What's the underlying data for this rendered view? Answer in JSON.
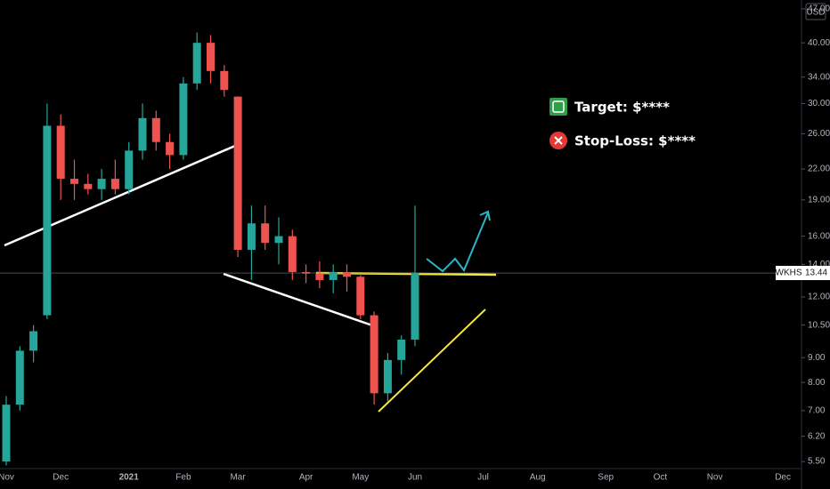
{
  "chart_data": {
    "type": "candlestick",
    "symbol": "WKHS",
    "currency": "USD",
    "last_price": 13.44,
    "log_scale": true,
    "up_color": "#26a69a",
    "down_color": "#ef5350",
    "annotations": {
      "target": "Target: $****",
      "stop_loss": "Stop-Loss: $****"
    },
    "categories": [
      "Nov",
      null,
      null,
      null,
      "Dec",
      null,
      null,
      null,
      null,
      "2021",
      null,
      null,
      null,
      "Feb",
      null,
      null,
      null,
      "Mar",
      null,
      null,
      null,
      null,
      "Apr",
      null,
      null,
      null,
      "May",
      null,
      null,
      null,
      "Jun",
      null,
      null,
      null,
      null,
      "Jul",
      null,
      null,
      null,
      "Aug",
      null,
      null,
      null,
      null,
      "Sep",
      null,
      null,
      null,
      "Oct",
      null,
      null,
      null,
      "Nov",
      null,
      null,
      null,
      null,
      "Dec"
    ],
    "open": [
      5.5,
      7.2,
      9.3,
      11,
      27,
      21,
      20.5,
      20,
      21,
      20,
      24,
      28,
      25,
      23.5,
      33,
      40,
      35,
      31,
      15,
      17,
      15.5,
      16,
      13.5,
      13.4,
      13,
      13.5,
      13.2,
      11,
      7.6,
      8.9,
      9.8,
      null,
      null,
      null,
      null,
      null,
      null,
      null,
      null,
      null,
      null,
      null,
      null,
      null,
      null,
      null,
      null,
      null,
      null,
      null,
      null,
      null,
      null,
      null,
      null,
      null,
      null,
      null
    ],
    "high": [
      7.5,
      9.5,
      10.5,
      30,
      28.5,
      23,
      21.5,
      22,
      23,
      25,
      30,
      29,
      26,
      34,
      42,
      41.5,
      36,
      31,
      18.5,
      18.5,
      17.5,
      16.5,
      14,
      14.2,
      14,
      14,
      13.3,
      11.2,
      9.2,
      10,
      18.5,
      null,
      null,
      null,
      null,
      null,
      null,
      null,
      null,
      null,
      null,
      null,
      null,
      null,
      null,
      null,
      null,
      null,
      null,
      null,
      null,
      null,
      null,
      null,
      null,
      null,
      null,
      null
    ],
    "low": [
      5.4,
      7.0,
      8.8,
      10.8,
      19,
      19,
      19.5,
      19,
      19.5,
      19.5,
      23,
      24,
      22,
      23,
      32,
      33,
      31,
      14.5,
      13,
      15,
      14,
      13,
      12.8,
      12.5,
      12.2,
      12.3,
      10.8,
      7.2,
      7.3,
      8.3,
      9.5,
      null,
      null,
      null,
      null,
      null,
      null,
      null,
      null,
      null,
      null,
      null,
      null,
      null,
      null,
      null,
      null,
      null,
      null,
      null,
      null,
      null,
      null,
      null,
      null,
      null,
      null,
      null
    ],
    "close": [
      7.2,
      9.3,
      10.2,
      27,
      21,
      20.5,
      20,
      21,
      20,
      24,
      28,
      25,
      23.5,
      33,
      40,
      35,
      32,
      15,
      17,
      15.5,
      16,
      13.5,
      13.4,
      13,
      13.5,
      13.2,
      11,
      7.6,
      8.9,
      9.8,
      13.44,
      null,
      null,
      null,
      null,
      null,
      null,
      null,
      null,
      null,
      null,
      null,
      null,
      null,
      null,
      null,
      null,
      null,
      null,
      null,
      null,
      null,
      null,
      null,
      null,
      null,
      null,
      null
    ],
    "ylim": [
      5.32,
      49
    ],
    "yticks": [
      {
        "value": 5.5,
        "label": "5.50"
      },
      {
        "value": 6.2,
        "label": "6.20"
      },
      {
        "value": 7,
        "label": "7.00"
      },
      {
        "value": 8,
        "label": "8.00"
      },
      {
        "value": 9,
        "label": "9.00"
      },
      {
        "value": 10.5,
        "label": "10.50"
      },
      {
        "value": 12,
        "label": "12.00"
      },
      {
        "value": 14,
        "label": "14.00"
      },
      {
        "value": 16,
        "label": "16.00"
      },
      {
        "value": 19,
        "label": "19.00"
      },
      {
        "value": 22,
        "label": "22.00"
      },
      {
        "value": 26,
        "label": "26.00"
      },
      {
        "value": 30,
        "label": "30.00"
      },
      {
        "value": 34,
        "label": "34.00"
      },
      {
        "value": 40,
        "label": "40.00"
      },
      {
        "value": 47,
        "label": "47.00"
      }
    ]
  }
}
